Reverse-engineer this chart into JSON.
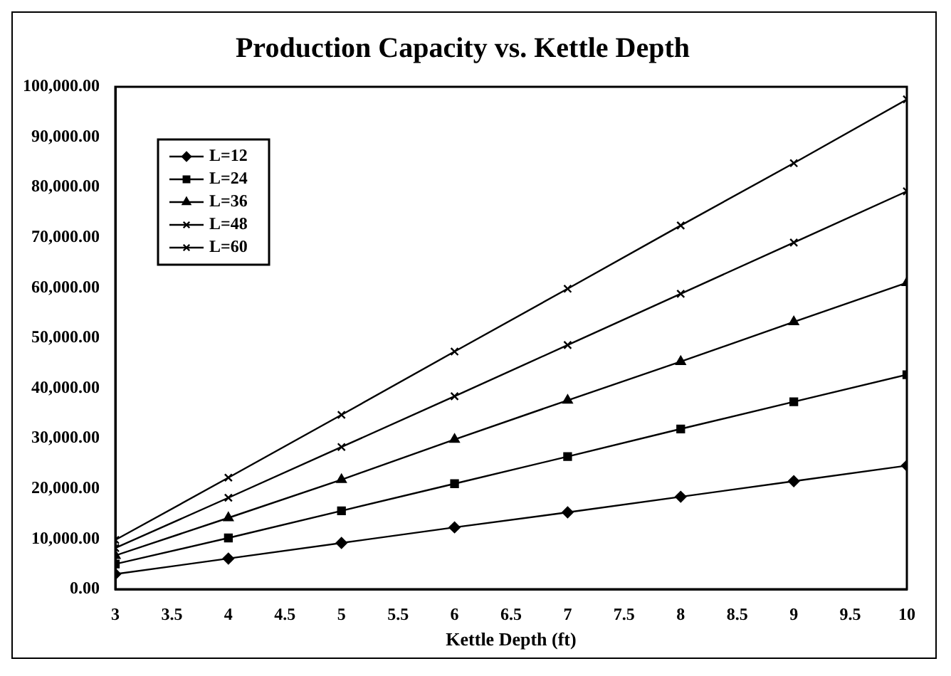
{
  "chart_data": {
    "type": "line",
    "title": "Production Capacity vs. Kettle Depth",
    "xlabel": "Kettle Depth (ft)",
    "x": [
      3,
      4,
      5,
      6,
      7,
      8,
      9,
      10
    ],
    "series": [
      {
        "name": "L=12",
        "color": "#000000",
        "marker": "diamond",
        "values": [
          3000,
          6100,
          9200,
          12300,
          15300,
          18400,
          21500,
          24600
        ]
      },
      {
        "name": "L=24",
        "color": "#000000",
        "marker": "square",
        "values": [
          5000,
          10200,
          15600,
          21000,
          26400,
          31900,
          37300,
          42700
        ]
      },
      {
        "name": "L=36",
        "color": "#000000",
        "marker": "triangle",
        "values": [
          6700,
          14200,
          21800,
          29800,
          37600,
          45300,
          53200,
          61000
        ]
      },
      {
        "name": "L=48",
        "color": "#000000",
        "marker": "cross",
        "values": [
          8200,
          18200,
          28300,
          38400,
          48600,
          58800,
          69000,
          79200
        ]
      },
      {
        "name": "L=60",
        "color": "#000000",
        "marker": "cross",
        "values": [
          9800,
          22200,
          34700,
          47300,
          59800,
          72400,
          84800,
          97500
        ]
      }
    ],
    "xlim": [
      3,
      10
    ],
    "xticks": [
      3,
      3.5,
      4,
      4.5,
      5,
      5.5,
      6,
      6.5,
      7,
      7.5,
      8,
      8.5,
      9,
      9.5,
      10
    ],
    "ylim": [
      0,
      100000
    ],
    "yticks": [
      {
        "value": 0,
        "label": "0.00"
      },
      {
        "value": 10000,
        "label": "10,000.00"
      },
      {
        "value": 20000,
        "label": "20,000.00"
      },
      {
        "value": 30000,
        "label": "30,000.00"
      },
      {
        "value": 40000,
        "label": "40,000.00"
      },
      {
        "value": 50000,
        "label": "50,000.00"
      },
      {
        "value": 60000,
        "label": "60,000.00"
      },
      {
        "value": 70000,
        "label": "70,000.00"
      },
      {
        "value": 80000,
        "label": "80,000.00"
      },
      {
        "value": 90000,
        "label": "90,000.00"
      },
      {
        "value": 100000,
        "label": "100,000.00"
      }
    ],
    "grid": false,
    "legend": "top left",
    "line_style": "solid"
  }
}
